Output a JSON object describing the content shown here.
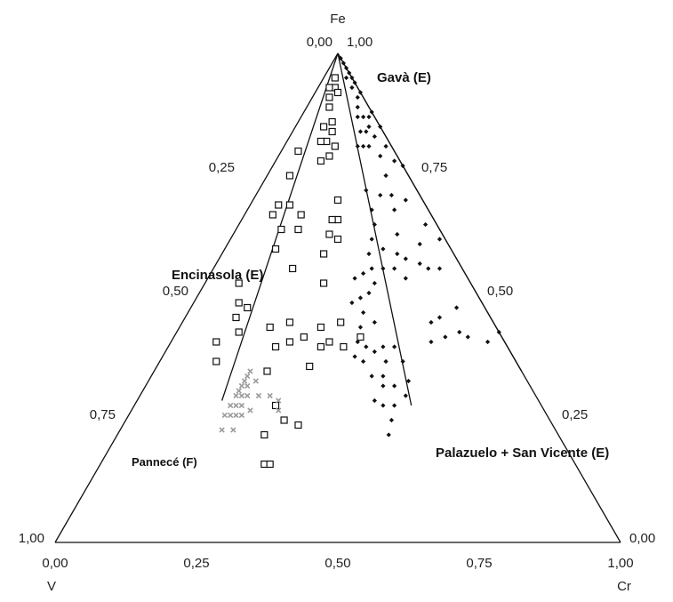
{
  "chart_data": {
    "type": "scatter",
    "subtype": "ternary",
    "title": "",
    "vertices": {
      "top": "Fe",
      "left": "V",
      "right": "Cr"
    },
    "ticks": {
      "bottom": [
        "0,00",
        "0,25",
        "0,50",
        "0,75",
        "1,00"
      ],
      "left": [
        "0,00",
        "0,25",
        "0,50",
        "0,75",
        "1,00"
      ],
      "right": [
        "1,00",
        "0,75",
        "0,50",
        "0,25",
        "0,00"
      ]
    },
    "group_labels": [
      "Gavà (E)",
      "Encinasola (E)",
      "Pannecé (F)",
      "Palazuelo + San Vicente (E)"
    ],
    "reference_lines": [
      {
        "from": {
          "V": 0,
          "Cr": 0
        },
        "to": {
          "V": 0.56,
          "Cr": 0.15
        }
      },
      {
        "from": {
          "V": 0,
          "Cr": 0
        },
        "to": {
          "V": 0.23,
          "Cr": 0.49
        }
      },
      {
        "from": {
          "V": 0,
          "Cr": 0
        },
        "to": {
          "V": 0.0,
          "Cr": 0.65
        }
      }
    ],
    "series": [
      {
        "marker": "filled-diamond",
        "color": "#111111",
        "points": [
          {
            "V": 0.0,
            "Cr": 0.01
          },
          {
            "V": 0.0,
            "Cr": 0.02
          },
          {
            "V": 0.0,
            "Cr": 0.03
          },
          {
            "V": 0.0,
            "Cr": 0.04
          },
          {
            "V": 0.0,
            "Cr": 0.05
          },
          {
            "V": 0.0,
            "Cr": 0.06
          },
          {
            "V": 0.01,
            "Cr": 0.04
          },
          {
            "V": 0.01,
            "Cr": 0.06
          },
          {
            "V": 0.01,
            "Cr": 0.08
          },
          {
            "V": 0.0,
            "Cr": 0.08
          },
          {
            "V": 0.02,
            "Cr": 0.09
          },
          {
            "V": 0.02,
            "Cr": 0.11
          },
          {
            "V": 0.03,
            "Cr": 0.1
          },
          {
            "V": 0.03,
            "Cr": 0.13
          },
          {
            "V": 0.04,
            "Cr": 0.12
          },
          {
            "V": 0.02,
            "Cr": 0.13
          },
          {
            "V": 0.01,
            "Cr": 0.12
          },
          {
            "V": 0.05,
            "Cr": 0.14
          },
          {
            "V": 0.04,
            "Cr": 0.15
          },
          {
            "V": 0.06,
            "Cr": 0.13
          },
          {
            "V": 0.02,
            "Cr": 0.15
          },
          {
            "V": 0.0,
            "Cr": 0.12
          },
          {
            "V": 0.0,
            "Cr": 0.15
          },
          {
            "V": 0.01,
            "Cr": 0.18
          },
          {
            "V": 0.03,
            "Cr": 0.18
          },
          {
            "V": 0.0,
            "Cr": 0.23
          },
          {
            "V": 0.01,
            "Cr": 0.21
          },
          {
            "V": 0.04,
            "Cr": 0.21
          },
          {
            "V": 0.07,
            "Cr": 0.22
          },
          {
            "V": 0.09,
            "Cr": 0.19
          },
          {
            "V": 0.05,
            "Cr": 0.24
          },
          {
            "V": 0.1,
            "Cr": 0.22
          },
          {
            "V": 0.11,
            "Cr": 0.24
          },
          {
            "V": 0.06,
            "Cr": 0.26
          },
          {
            "V": 0.03,
            "Cr": 0.27
          },
          {
            "V": 0.12,
            "Cr": 0.28
          },
          {
            "V": 0.08,
            "Cr": 0.29
          },
          {
            "V": 0.13,
            "Cr": 0.25
          },
          {
            "V": 0.15,
            "Cr": 0.26
          },
          {
            "V": 0.16,
            "Cr": 0.28
          },
          {
            "V": 0.18,
            "Cr": 0.27
          },
          {
            "V": 0.17,
            "Cr": 0.3
          },
          {
            "V": 0.19,
            "Cr": 0.3
          },
          {
            "V": 0.2,
            "Cr": 0.26
          },
          {
            "V": 0.21,
            "Cr": 0.29
          },
          {
            "V": 0.22,
            "Cr": 0.31
          },
          {
            "V": 0.23,
            "Cr": 0.28
          },
          {
            "V": 0.14,
            "Cr": 0.3
          },
          {
            "V": 0.12,
            "Cr": 0.32
          },
          {
            "V": 0.1,
            "Cr": 0.31
          },
          {
            "V": 0.02,
            "Cr": 0.33
          },
          {
            "V": 0.05,
            "Cr": 0.34
          },
          {
            "V": 0.09,
            "Cr": 0.33
          },
          {
            "V": 0.11,
            "Cr": 0.35
          },
          {
            "V": 0.07,
            "Cr": 0.36
          },
          {
            "V": 0.01,
            "Cr": 0.37
          },
          {
            "V": 0.04,
            "Cr": 0.4
          },
          {
            "V": 0.06,
            "Cr": 0.38
          },
          {
            "V": 0.21,
            "Cr": 0.34
          },
          {
            "V": 0.25,
            "Cr": 0.35
          },
          {
            "V": 0.26,
            "Cr": 0.33
          },
          {
            "V": 0.27,
            "Cr": 0.36
          },
          {
            "V": 0.24,
            "Cr": 0.37
          },
          {
            "V": 0.28,
            "Cr": 0.34
          },
          {
            "V": 0.24,
            "Cr": 0.32
          },
          {
            "V": 0.22,
            "Cr": 0.38
          },
          {
            "V": 0.2,
            "Cr": 0.4
          },
          {
            "V": 0.2,
            "Cr": 0.43
          },
          {
            "V": 0.26,
            "Cr": 0.42
          },
          {
            "V": 0.27,
            "Cr": 0.39
          },
          {
            "V": 0.24,
            "Cr": 0.44
          },
          {
            "V": 0.23,
            "Cr": 0.4
          },
          {
            "V": 0.28,
            "Cr": 0.44
          },
          {
            "V": 0.25,
            "Cr": 0.41
          },
          {
            "V": 0.29,
            "Cr": 0.42
          },
          {
            "V": 0.21,
            "Cr": 0.46
          },
          {
            "V": 0.23,
            "Cr": 0.47
          },
          {
            "V": 0.26,
            "Cr": 0.46
          },
          {
            "V": 0.28,
            "Cr": 0.47
          },
          {
            "V": 0.3,
            "Cr": 0.48
          },
          {
            "V": 0.09,
            "Cr": 0.45
          },
          {
            "V": 0.05,
            "Cr": 0.47
          },
          {
            "V": 0.07,
            "Cr": 0.5
          },
          {
            "V": 0.11,
            "Cr": 0.44
          },
          {
            "V": 0.13,
            "Cr": 0.46
          },
          {
            "V": 0.1,
            "Cr": 0.48
          },
          {
            "V": 0.06,
            "Cr": 0.52
          },
          {
            "V": 0.03,
            "Cr": 0.56
          },
          {
            "V": 0.0,
            "Cr": 0.57
          }
        ]
      },
      {
        "marker": "open-square",
        "color": "#111111",
        "points": [
          {
            "V": 0.03,
            "Cr": 0.02
          },
          {
            "V": 0.04,
            "Cr": 0.03
          },
          {
            "V": 0.05,
            "Cr": 0.02
          },
          {
            "V": 0.06,
            "Cr": 0.03
          },
          {
            "V": 0.04,
            "Cr": 0.04
          },
          {
            "V": 0.07,
            "Cr": 0.04
          },
          {
            "V": 0.08,
            "Cr": 0.06
          },
          {
            "V": 0.1,
            "Cr": 0.05
          },
          {
            "V": 0.09,
            "Cr": 0.07
          },
          {
            "V": 0.11,
            "Cr": 0.07
          },
          {
            "V": 0.1,
            "Cr": 0.09
          },
          {
            "V": 0.12,
            "Cr": 0.09
          },
          {
            "V": 0.12,
            "Cr": 0.06
          },
          {
            "V": 0.14,
            "Cr": 0.08
          },
          {
            "V": 0.17,
            "Cr": 0.03
          },
          {
            "V": 0.21,
            "Cr": 0.04
          },
          {
            "V": 0.24,
            "Cr": 0.07
          },
          {
            "V": 0.23,
            "Cr": 0.1
          },
          {
            "V": 0.25,
            "Cr": 0.11
          },
          {
            "V": 0.26,
            "Cr": 0.05
          },
          {
            "V": 0.28,
            "Cr": 0.05
          },
          {
            "V": 0.28,
            "Cr": 0.08
          },
          {
            "V": 0.31,
            "Cr": 0.09
          },
          {
            "V": 0.3,
            "Cr": 0.14
          },
          {
            "V": 0.15,
            "Cr": 0.15
          },
          {
            "V": 0.17,
            "Cr": 0.17
          },
          {
            "V": 0.18,
            "Cr": 0.16
          },
          {
            "V": 0.2,
            "Cr": 0.17
          },
          {
            "V": 0.19,
            "Cr": 0.19
          },
          {
            "V": 0.23,
            "Cr": 0.18
          },
          {
            "V": 0.26,
            "Cr": 0.21
          },
          {
            "V": 0.41,
            "Cr": 0.06
          },
          {
            "V": 0.43,
            "Cr": 0.08
          },
          {
            "V": 0.42,
            "Cr": 0.1
          },
          {
            "V": 0.45,
            "Cr": 0.09
          },
          {
            "V": 0.46,
            "Cr": 0.11
          },
          {
            "V": 0.51,
            "Cr": 0.08
          },
          {
            "V": 0.53,
            "Cr": 0.1
          },
          {
            "V": 0.4,
            "Cr": 0.16
          },
          {
            "V": 0.41,
            "Cr": 0.19
          },
          {
            "V": 0.36,
            "Cr": 0.19
          },
          {
            "V": 0.38,
            "Cr": 0.21
          },
          {
            "V": 0.35,
            "Cr": 0.23
          },
          {
            "V": 0.37,
            "Cr": 0.27
          },
          {
            "V": 0.33,
            "Cr": 0.27
          },
          {
            "V": 0.31,
            "Cr": 0.28
          },
          {
            "V": 0.31,
            "Cr": 0.25
          },
          {
            "V": 0.27,
            "Cr": 0.28
          },
          {
            "V": 0.29,
            "Cr": 0.31
          },
          {
            "V": 0.25,
            "Cr": 0.33
          },
          {
            "V": 0.47,
            "Cr": 0.25
          },
          {
            "V": 0.47,
            "Cr": 0.28
          },
          {
            "V": 0.45,
            "Cr": 0.31
          },
          {
            "V": 0.45,
            "Cr": 0.2
          },
          {
            "V": 0.52,
            "Cr": 0.26
          },
          {
            "V": 0.55,
            "Cr": 0.29
          },
          {
            "V": 0.54,
            "Cr": 0.3
          }
        ]
      },
      {
        "marker": "gray-x",
        "color": "#9a9a9a",
        "points": [
          {
            "V": 0.48,
            "Cr": 0.17
          },
          {
            "V": 0.49,
            "Cr": 0.17
          },
          {
            "V": 0.5,
            "Cr": 0.17
          },
          {
            "V": 0.51,
            "Cr": 0.17
          },
          {
            "V": 0.52,
            "Cr": 0.17
          },
          {
            "V": 0.53,
            "Cr": 0.17
          },
          {
            "V": 0.48,
            "Cr": 0.19
          },
          {
            "V": 0.5,
            "Cr": 0.18
          },
          {
            "V": 0.51,
            "Cr": 0.19
          },
          {
            "V": 0.52,
            "Cr": 0.18
          },
          {
            "V": 0.54,
            "Cr": 0.18
          },
          {
            "V": 0.55,
            "Cr": 0.17
          },
          {
            "V": 0.53,
            "Cr": 0.19
          },
          {
            "V": 0.52,
            "Cr": 0.21
          },
          {
            "V": 0.54,
            "Cr": 0.2
          },
          {
            "V": 0.55,
            "Cr": 0.19
          },
          {
            "V": 0.56,
            "Cr": 0.18
          },
          {
            "V": 0.57,
            "Cr": 0.17
          },
          {
            "V": 0.49,
            "Cr": 0.21
          },
          {
            "V": 0.47,
            "Cr": 0.23
          },
          {
            "V": 0.46,
            "Cr": 0.25
          },
          {
            "V": 0.47,
            "Cr": 0.26
          },
          {
            "V": 0.57,
            "Cr": 0.2
          },
          {
            "V": 0.59,
            "Cr": 0.18
          }
        ]
      }
    ]
  }
}
